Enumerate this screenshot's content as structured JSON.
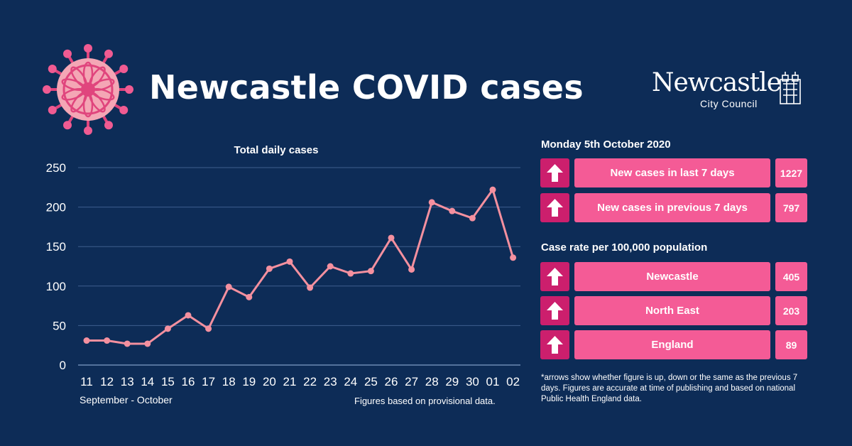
{
  "header": {
    "title": "Newcastle COVID cases",
    "logo_word": "Newcastle",
    "logo_sub": "City Council"
  },
  "chart_data": {
    "type": "line",
    "title": "Total daily cases",
    "xlabel": "September - October",
    "ylabel": "",
    "ylim": [
      0,
      250
    ],
    "yticks": [
      0,
      50,
      100,
      150,
      200,
      250
    ],
    "grid": true,
    "categories": [
      "11",
      "12",
      "13",
      "14",
      "15",
      "16",
      "17",
      "18",
      "19",
      "20",
      "21",
      "22",
      "23",
      "24",
      "25",
      "26",
      "27",
      "28",
      "29",
      "30",
      "01",
      "02"
    ],
    "series": [
      {
        "values": [
          31,
          31,
          27,
          27,
          46,
          63,
          46,
          99,
          86,
          122,
          131,
          98,
          125,
          116,
          119,
          161,
          121,
          206,
          195,
          186,
          222,
          136
        ]
      }
    ],
    "note": "Figures based on provisional data.",
    "line_color": "#f4909f"
  },
  "panel": {
    "date": "Monday 5th October 2020",
    "weekly": [
      {
        "label": "New cases in last 7 days",
        "value": "1227",
        "direction": "up"
      },
      {
        "label": "New cases in previous 7 days",
        "value": "797",
        "direction": "up"
      }
    ],
    "rate_heading": "Case rate per 100,000 population",
    "rates": [
      {
        "label": "Newcastle",
        "value": "405",
        "direction": "up"
      },
      {
        "label": "North East",
        "value": "203",
        "direction": "up"
      },
      {
        "label": "England",
        "value": "89",
        "direction": "up"
      }
    ],
    "footnote": "*arrows show whether figure is up, down or the same as the previous 7 days. Figures are accurate at time of publishing and based on national Public Health England data."
  },
  "colors": {
    "background": "#0d2c57",
    "arrow_box": "#cc1f6d",
    "label_box": "#f45b96"
  },
  "icons": [
    "virus-icon",
    "council-crest-icon",
    "up-arrow-icon"
  ]
}
